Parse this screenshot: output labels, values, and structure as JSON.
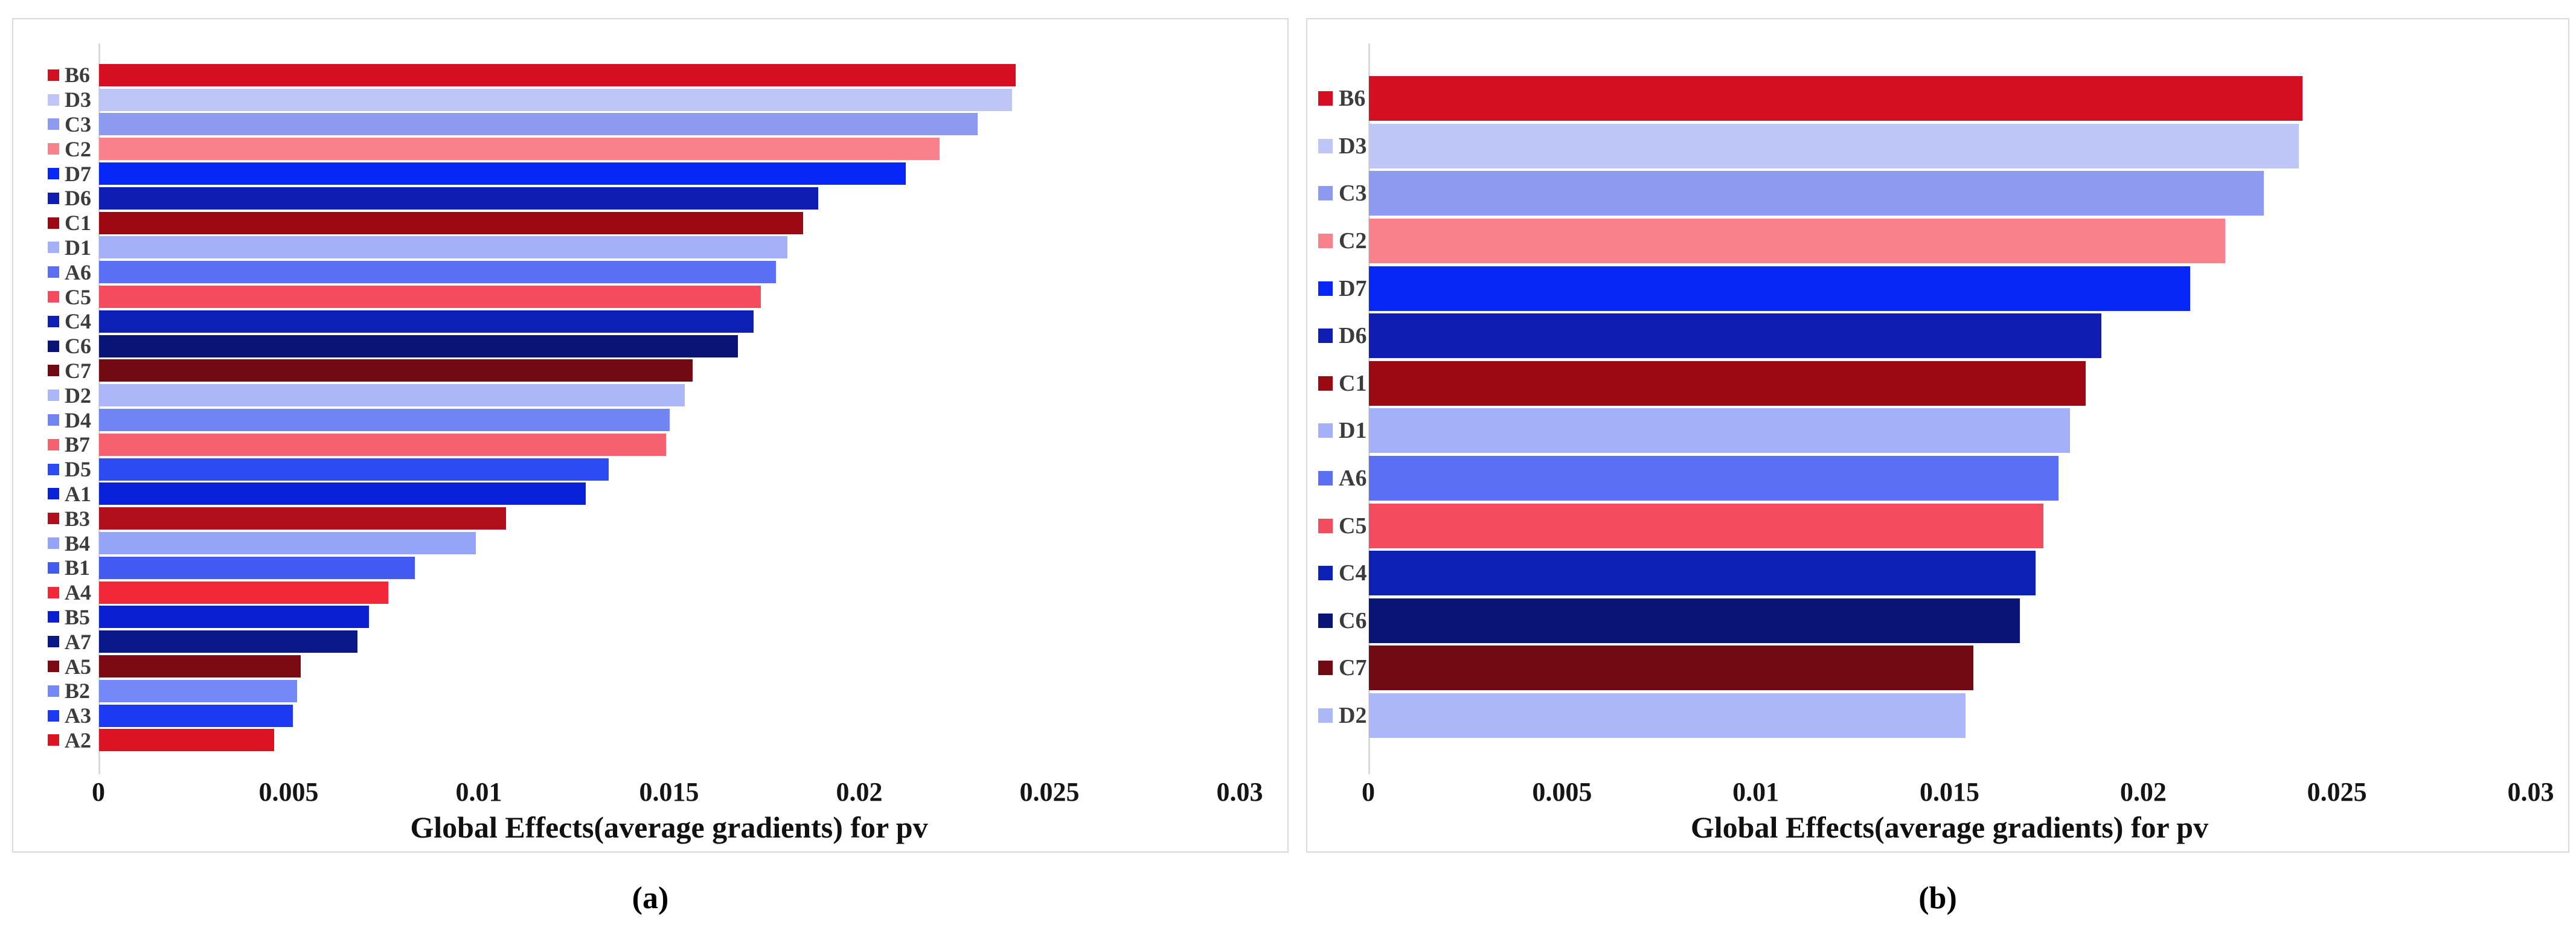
{
  "figure": {
    "background": "#ffffff",
    "frame_color": "#d9d9d9",
    "axis_color": "#d9d9d9",
    "tick_text_color": "#151515",
    "legend_text_color": "#3c3c3c"
  },
  "captions": {
    "a": "(a)",
    "b": "(b)"
  },
  "chart_data": [
    {
      "id": "a",
      "type": "bar",
      "orientation": "horizontal",
      "caption": "(a)",
      "xlabel": "Global Effects(average gradients) for pv",
      "xlim": [
        0,
        0.03
      ],
      "xticks": [
        "0",
        "0.005",
        "0.01",
        "0.015",
        "0.02",
        "0.025",
        "0.03"
      ],
      "grid": false,
      "legend_position": "left-of-bars",
      "categories": [
        "B6",
        "D3",
        "C3",
        "C2",
        "D7",
        "D6",
        "C1",
        "D1",
        "A6",
        "C5",
        "C4",
        "C6",
        "C7",
        "D2",
        "D4",
        "B7",
        "D5",
        "A1",
        "B3",
        "B4",
        "B1",
        "A4",
        "B5",
        "A7",
        "A5",
        "B2",
        "A3",
        "A2"
      ],
      "values": [
        0.0241,
        0.024,
        0.0231,
        0.0221,
        0.0212,
        0.0189,
        0.0185,
        0.0181,
        0.0178,
        0.0174,
        0.0172,
        0.0168,
        0.0156,
        0.0154,
        0.015,
        0.0149,
        0.0134,
        0.0128,
        0.0107,
        0.0099,
        0.0083,
        0.0076,
        0.0071,
        0.0068,
        0.0053,
        0.0052,
        0.0051,
        0.0046
      ],
      "colors": [
        "#D50F22",
        "#BDC6F7",
        "#8C9BF0",
        "#F8828C",
        "#0627F5",
        "#0F1DB2",
        "#9C0913",
        "#A4B0F7",
        "#5B6FF5",
        "#F54B5F",
        "#0E21B6",
        "#0A1376",
        "#710A13",
        "#ABB7F7",
        "#7084F2",
        "#F5616F",
        "#2C4BF2",
        "#0821D9",
        "#B20F1D",
        "#94A4F7",
        "#425AF2",
        "#F22839",
        "#0A1FD1",
        "#0A1889",
        "#7B0A13",
        "#7489F5",
        "#1C3AF2",
        "#DC1322"
      ]
    },
    {
      "id": "b",
      "type": "bar",
      "orientation": "horizontal",
      "caption": "(b)",
      "xlabel": "Global Effects(average gradients) for pv",
      "xlim": [
        0,
        0.03
      ],
      "xticks": [
        "0",
        "0.005",
        "0.01",
        "0.015",
        "0.02",
        "0.025",
        "0.03"
      ],
      "grid": false,
      "legend_position": "left-of-bars",
      "categories": [
        "B6",
        "D3",
        "C3",
        "C2",
        "D7",
        "D6",
        "C1",
        "D1",
        "A6",
        "C5",
        "C4",
        "C6",
        "C7",
        "D2"
      ],
      "values": [
        0.0241,
        0.024,
        0.0231,
        0.0221,
        0.0212,
        0.0189,
        0.0185,
        0.0181,
        0.0178,
        0.0174,
        0.0172,
        0.0168,
        0.0156,
        0.0154
      ],
      "colors": [
        "#D50F22",
        "#BDC6F7",
        "#8C9BF0",
        "#F8828C",
        "#0627F5",
        "#0F1DB2",
        "#9C0913",
        "#A4B0F7",
        "#5B6FF5",
        "#F54B5F",
        "#0E21B6",
        "#0A1376",
        "#710A13",
        "#ABB7F7"
      ]
    }
  ]
}
